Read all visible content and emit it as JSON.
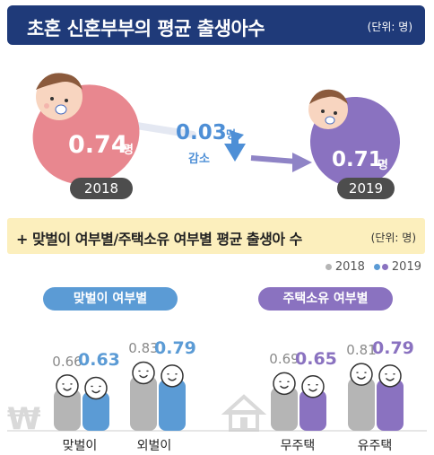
{
  "header": {
    "title": "초혼 신혼부부의 평균 출생아수",
    "unit": "(단위: 명)"
  },
  "summary": {
    "value_2018": "0.74",
    "value_2019": "0.71",
    "unit_suffix": "명",
    "year_2018": "2018",
    "year_2019": "2019",
    "decrease_value": "0.03",
    "decrease_label": "감소"
  },
  "subheader": {
    "title": "+ 맞벌이 여부별/주택소유 여부별 평균 출생아 수",
    "unit": "(단위: 명)"
  },
  "colors": {
    "series_2018": "#b5b5b5",
    "dual_income_2019": "#5b9bd5",
    "housing_2019": "#8a72c0",
    "pink": "#e8878f",
    "purple": "#8a72c0",
    "title_bg": "#1f3a79"
  },
  "chart_data": {
    "type": "bar",
    "legend": [
      "2018",
      "2019"
    ],
    "legend_position": "top-right",
    "groups": [
      {
        "name": "맞벌이 여부별",
        "categories": [
          "맞벌이",
          "외벌이"
        ],
        "series": [
          {
            "name": "2018",
            "values": [
              0.66,
              0.83
            ]
          },
          {
            "name": "2019",
            "values": [
              0.63,
              0.79
            ]
          }
        ]
      },
      {
        "name": "주택소유 여부별",
        "categories": [
          "무주택",
          "유주택"
        ],
        "series": [
          {
            "name": "2018",
            "values": [
              0.69,
              0.81
            ]
          },
          {
            "name": "2019",
            "values": [
              0.65,
              0.79
            ]
          }
        ]
      }
    ]
  }
}
